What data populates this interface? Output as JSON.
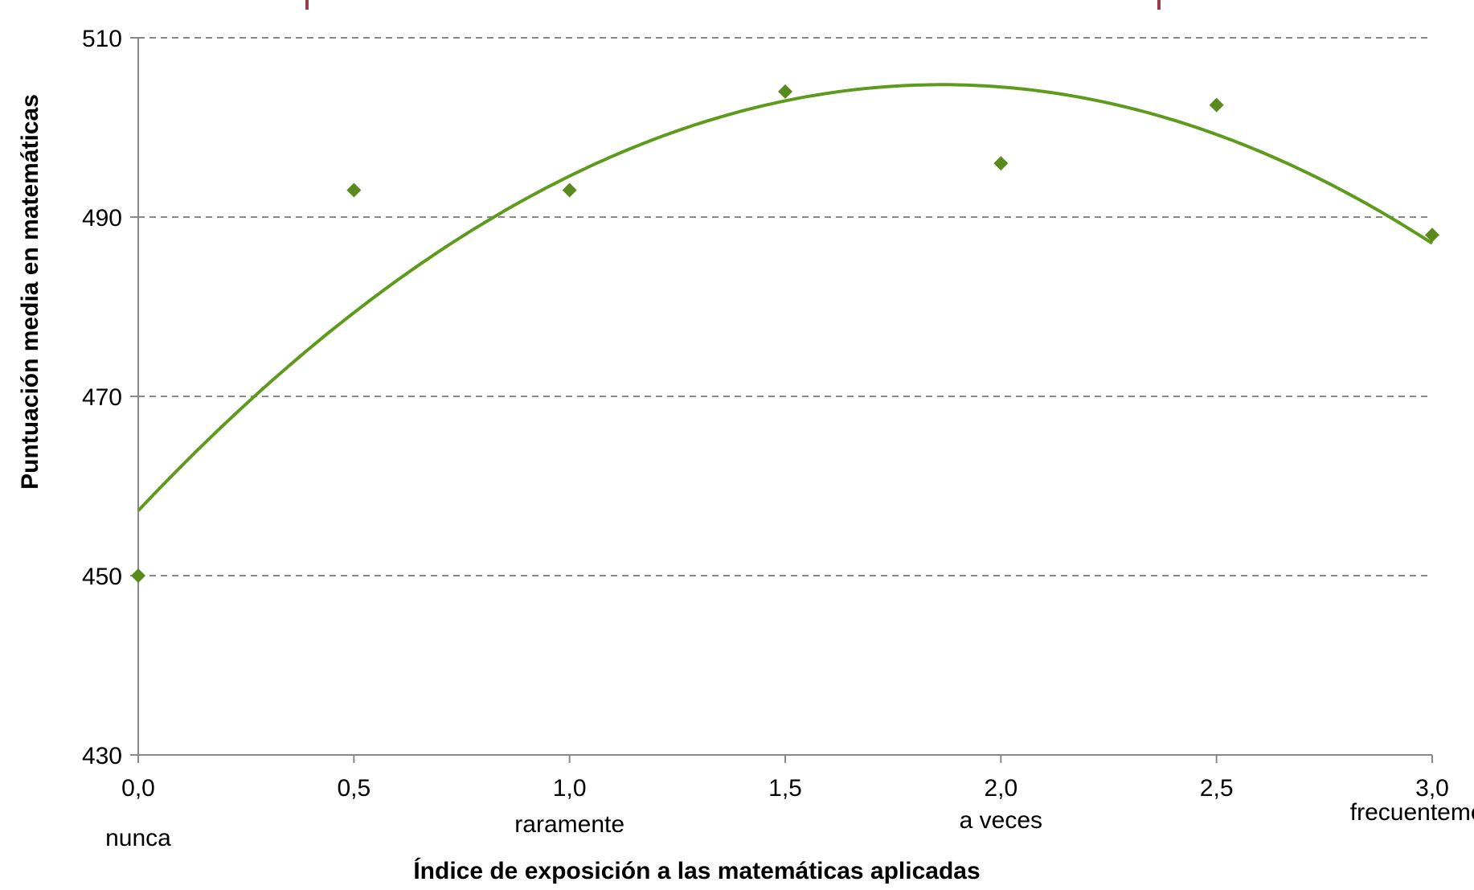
{
  "chart_data": {
    "type": "scatter",
    "title": "",
    "xlabel": "Índice de exposición a las matemáticas aplicadas",
    "ylabel": "Puntuación media en matemáticas",
    "xlim": [
      0,
      3
    ],
    "ylim": [
      430,
      510
    ],
    "x_ticks": [
      0,
      0.5,
      1,
      1.5,
      2,
      2.5,
      3
    ],
    "x_tick_labels": [
      "0,0",
      "0,5",
      "1,0",
      "1,5",
      "2,0",
      "2,5",
      "3,0"
    ],
    "y_ticks": [
      430,
      450,
      470,
      490,
      510
    ],
    "y_tick_labels": [
      "430",
      "450",
      "470",
      "490",
      "510"
    ],
    "category_labels": [
      {
        "x": 0,
        "label": "nunca"
      },
      {
        "x": 1,
        "label": "raramente"
      },
      {
        "x": 2,
        "label": "a veces"
      },
      {
        "x": 3,
        "label": "frecuentemente"
      }
    ],
    "grid": "horizontal dashed",
    "series": [
      {
        "type": "scatter",
        "marker": "diamond",
        "color": "#5a8a1e",
        "points": [
          {
            "x": 0.0,
            "y": 450
          },
          {
            "x": 0.5,
            "y": 493
          },
          {
            "x": 1.0,
            "y": 493
          },
          {
            "x": 1.5,
            "y": 504
          },
          {
            "x": 2.0,
            "y": 496
          },
          {
            "x": 2.5,
            "y": 502.5
          },
          {
            "x": 3.0,
            "y": 488
          }
        ]
      },
      {
        "type": "line",
        "style": "polynomial trend (degree 2)",
        "color": "#5e9a1c",
        "x": [
          0,
          0.25,
          0.5,
          0.75,
          1.0,
          1.25,
          1.5,
          1.75,
          1.85,
          2.0,
          2.25,
          2.5,
          2.75,
          3.0
        ],
        "y": [
          457.2,
          469.2,
          479.4,
          487.9,
          494.5,
          499.5,
          502.8,
          504.7,
          504.8,
          504.5,
          503.0,
          499.0,
          494.1,
          487.0
        ]
      }
    ],
    "colors": {
      "marker": "#5a8a1e",
      "trend": "#5e9a1c",
      "grid": "#888888",
      "axis": "#888888",
      "header_mark": "#9b3b4e"
    }
  }
}
